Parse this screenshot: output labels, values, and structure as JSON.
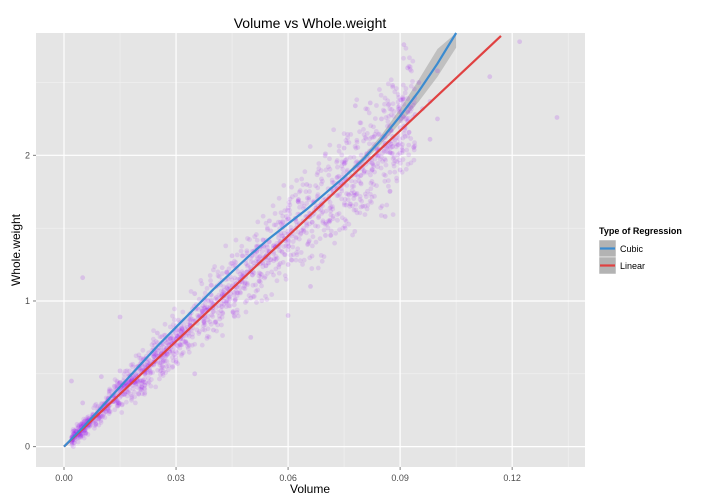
{
  "chart_data": {
    "type": "scatter",
    "title": "Volume vs Whole.weight",
    "xlabel": "Volume",
    "ylabel": "Whole.weight",
    "xlim": [
      -0.0075,
      0.1395
    ],
    "ylim": [
      -0.14,
      2.84
    ],
    "x_ticks": [
      0.0,
      0.03,
      0.06,
      0.09,
      0.12
    ],
    "x_tick_labels": [
      "0.00",
      "0.03",
      "0.06",
      "0.09",
      "0.12"
    ],
    "y_ticks": [
      0,
      1,
      2
    ],
    "y_tick_labels": [
      "0",
      "1",
      "2"
    ],
    "grid": true,
    "point_color": "#a020f0",
    "panel_background": "#e5e5e5",
    "legend": {
      "title": "Type of Regression",
      "position": "right",
      "entries": [
        {
          "label": "Cubic",
          "color": "#3b8bd0"
        },
        {
          "label": "Linear",
          "color": "#e04141"
        }
      ]
    },
    "series": [
      {
        "name": "Cubic",
        "type": "line",
        "color": "#3b8bd0",
        "x": [
          0.0,
          0.005,
          0.01,
          0.015,
          0.02,
          0.025,
          0.03,
          0.035,
          0.04,
          0.045,
          0.05,
          0.055,
          0.06,
          0.065,
          0.07,
          0.075,
          0.08,
          0.085,
          0.09,
          0.095,
          0.1,
          0.105
        ],
        "y": [
          0.0,
          0.13,
          0.27,
          0.41,
          0.55,
          0.69,
          0.82,
          0.95,
          1.08,
          1.2,
          1.32,
          1.43,
          1.53,
          1.63,
          1.74,
          1.85,
          1.97,
          2.11,
          2.27,
          2.44,
          2.63,
          2.84
        ],
        "ci_low": [
          0.0,
          0.13,
          0.27,
          0.41,
          0.55,
          0.69,
          0.82,
          0.95,
          1.08,
          1.2,
          1.32,
          1.43,
          1.53,
          1.63,
          1.74,
          1.84,
          1.95,
          2.08,
          2.22,
          2.37,
          2.54,
          2.74
        ],
        "ci_high": [
          0.0,
          0.13,
          0.27,
          0.41,
          0.55,
          0.69,
          0.82,
          0.95,
          1.08,
          1.2,
          1.32,
          1.43,
          1.53,
          1.63,
          1.74,
          1.86,
          1.99,
          2.14,
          2.32,
          2.52,
          2.73,
          2.84
        ]
      },
      {
        "name": "Linear",
        "type": "line",
        "color": "#e04141",
        "x": [
          0.0,
          0.117
        ],
        "y": [
          0.0,
          2.82
        ]
      }
    ],
    "scatter": {
      "description_free": true,
      "centerline_slope": 24.3,
      "points": [
        [
          0.002,
          0.04
        ],
        [
          0.003,
          0.08
        ],
        [
          0.004,
          0.1
        ],
        [
          0.005,
          0.12
        ],
        [
          0.006,
          0.15
        ],
        [
          0.007,
          0.17
        ],
        [
          0.008,
          0.2
        ],
        [
          0.009,
          0.22
        ],
        [
          0.01,
          0.25
        ],
        [
          0.011,
          0.28
        ],
        [
          0.012,
          0.3
        ],
        [
          0.013,
          0.31
        ],
        [
          0.014,
          0.35
        ],
        [
          0.015,
          0.37
        ],
        [
          0.016,
          0.4
        ],
        [
          0.017,
          0.42
        ],
        [
          0.018,
          0.45
        ],
        [
          0.019,
          0.47
        ],
        [
          0.02,
          0.49
        ],
        [
          0.021,
          0.52
        ],
        [
          0.022,
          0.54
        ],
        [
          0.023,
          0.57
        ],
        [
          0.024,
          0.58
        ],
        [
          0.025,
          0.62
        ],
        [
          0.026,
          0.64
        ],
        [
          0.027,
          0.66
        ],
        [
          0.028,
          0.7
        ],
        [
          0.029,
          0.71
        ],
        [
          0.03,
          0.74
        ],
        [
          0.031,
          0.77
        ],
        [
          0.032,
          0.78
        ],
        [
          0.033,
          0.82
        ],
        [
          0.034,
          0.83
        ],
        [
          0.035,
          0.86
        ],
        [
          0.036,
          0.89
        ],
        [
          0.037,
          0.9
        ],
        [
          0.038,
          0.94
        ],
        [
          0.039,
          0.96
        ],
        [
          0.04,
          0.98
        ],
        [
          0.041,
          1.01
        ],
        [
          0.042,
          1.03
        ],
        [
          0.043,
          1.05
        ],
        [
          0.044,
          1.08
        ],
        [
          0.045,
          1.1
        ],
        [
          0.046,
          1.12
        ],
        [
          0.047,
          1.15
        ],
        [
          0.048,
          1.17
        ],
        [
          0.049,
          1.2
        ],
        [
          0.05,
          1.22
        ],
        [
          0.051,
          1.24
        ],
        [
          0.052,
          1.27
        ],
        [
          0.053,
          1.29
        ],
        [
          0.054,
          1.31
        ],
        [
          0.055,
          1.34
        ],
        [
          0.056,
          1.36
        ],
        [
          0.057,
          1.38
        ],
        [
          0.058,
          1.41
        ],
        [
          0.059,
          1.43
        ],
        [
          0.06,
          1.46
        ],
        [
          0.061,
          1.48
        ],
        [
          0.062,
          1.5
        ],
        [
          0.063,
          1.53
        ],
        [
          0.064,
          1.55
        ],
        [
          0.065,
          1.58
        ],
        [
          0.066,
          1.6
        ],
        [
          0.067,
          1.62
        ],
        [
          0.068,
          1.65
        ],
        [
          0.069,
          1.67
        ],
        [
          0.07,
          1.7
        ],
        [
          0.071,
          1.72
        ],
        [
          0.072,
          1.74
        ],
        [
          0.073,
          1.77
        ],
        [
          0.074,
          1.79
        ],
        [
          0.075,
          1.82
        ],
        [
          0.076,
          1.84
        ],
        [
          0.077,
          1.86
        ],
        [
          0.078,
          1.89
        ],
        [
          0.079,
          1.91
        ],
        [
          0.08,
          1.94
        ],
        [
          0.082,
          1.98
        ],
        [
          0.084,
          2.03
        ],
        [
          0.086,
          2.08
        ],
        [
          0.088,
          2.13
        ],
        [
          0.09,
          2.19
        ],
        [
          0.092,
          2.23
        ],
        [
          0.094,
          2.28
        ],
        [
          0.096,
          2.32
        ],
        [
          0.098,
          2.37
        ],
        [
          0.015,
          0.52
        ],
        [
          0.02,
          0.36
        ],
        [
          0.025,
          0.78
        ],
        [
          0.03,
          0.58
        ],
        [
          0.035,
          1.05
        ],
        [
          0.04,
          0.8
        ],
        [
          0.045,
          1.31
        ],
        [
          0.05,
          1.02
        ],
        [
          0.055,
          1.55
        ],
        [
          0.06,
          1.25
        ],
        [
          0.065,
          1.8
        ],
        [
          0.07,
          1.45
        ],
        [
          0.075,
          2.05
        ],
        [
          0.08,
          1.65
        ],
        [
          0.085,
          2.25
        ],
        [
          0.09,
          1.9
        ],
        [
          0.095,
          2.5
        ],
        [
          0.1,
          2.25
        ],
        [
          0.091,
          2.76
        ],
        [
          0.082,
          2.36
        ],
        [
          0.015,
          0.89
        ],
        [
          0.01,
          0.48
        ],
        [
          0.005,
          0.3
        ],
        [
          0.002,
          0.45
        ],
        [
          0.005,
          1.16
        ],
        [
          0.035,
          0.5
        ],
        [
          0.05,
          0.75
        ],
        [
          0.06,
          0.9
        ],
        [
          0.066,
          1.1
        ],
        [
          0.122,
          2.78
        ],
        [
          0.132,
          2.26
        ],
        [
          0.114,
          2.54
        ],
        [
          0.1,
          2.58
        ],
        [
          0.088,
          2.48
        ],
        [
          0.07,
          2.01
        ],
        [
          0.098,
          2.11
        ],
        [
          0.092,
          2.6
        ],
        [
          0.078,
          2.34
        ],
        [
          0.086,
          1.58
        ]
      ]
    }
  }
}
